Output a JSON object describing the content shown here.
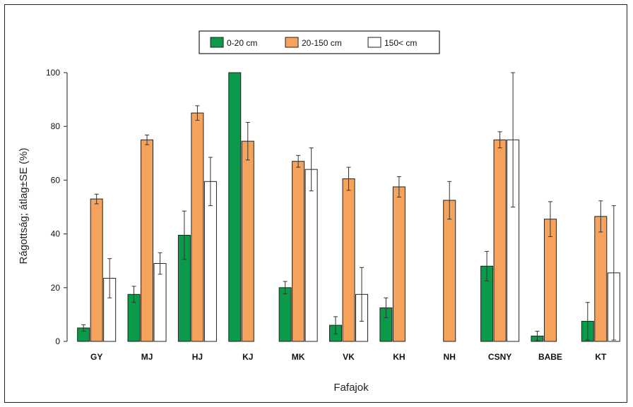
{
  "chart_data": {
    "type": "bar",
    "xlabel": "Fafajok",
    "ylabel": "Rágottság; átlag±SE (%)",
    "ylim": [
      0,
      100
    ],
    "yticks": [
      "0",
      "20",
      "40",
      "60",
      "80",
      "100"
    ],
    "legend_position": "top-center",
    "categories": [
      "GY",
      "MJ",
      "HJ",
      "KJ",
      "MK",
      "VK",
      "KH",
      "NH",
      "CSNY",
      "BABE",
      "KT"
    ],
    "series": [
      {
        "name": "0-20 cm",
        "color": "#0a9a4a",
        "values": [
          5,
          17.5,
          39.5,
          100,
          20,
          6,
          12.5,
          0,
          28,
          2,
          7.5
        ],
        "se": [
          1.2,
          3,
          9,
          0,
          2.3,
          3.2,
          3.7,
          0,
          5.5,
          1.8,
          7
        ]
      },
      {
        "name": "20-150 cm",
        "color": "#f5a25d",
        "values": [
          53,
          75,
          85,
          74.5,
          67,
          60.5,
          57.5,
          52.5,
          75,
          45.5,
          46.5
        ],
        "se": [
          1.8,
          1.8,
          2.7,
          7,
          2.2,
          4.3,
          3.8,
          7,
          3,
          6.5,
          5.8
        ]
      },
      {
        "name": "150< cm",
        "color": "#ffffff",
        "values": [
          23.5,
          29,
          59.5,
          0,
          64,
          17.5,
          0,
          0,
          75,
          0,
          25.5
        ],
        "se": [
          7.3,
          4,
          9,
          0,
          8,
          10,
          0,
          0,
          25,
          0,
          25
        ]
      }
    ]
  }
}
